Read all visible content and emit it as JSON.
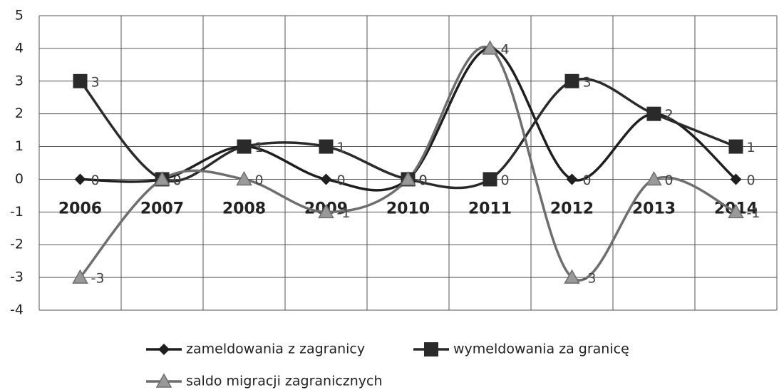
{
  "chart_data": {
    "type": "line",
    "categories": [
      "2006",
      "2007",
      "2008",
      "2009",
      "2010",
      "2011",
      "2012",
      "2013",
      "2014"
    ],
    "series": [
      {
        "name": "zameldowania z zagranicy",
        "color": "#1e1e1e",
        "marker": "diamond",
        "values": [
          0,
          0,
          1,
          0,
          0,
          4,
          0,
          2,
          0
        ]
      },
      {
        "name": "wymeldowania za granicę",
        "color": "#2a2a2a",
        "marker": "square",
        "values": [
          3,
          0,
          1,
          1,
          0,
          0,
          3,
          2,
          1
        ]
      },
      {
        "name": "saldo migracji zagranicznych",
        "color": "#6e6e6e",
        "marker": "triangle",
        "values": [
          -3,
          0,
          0,
          -1,
          0,
          4,
          -3,
          0,
          -1
        ]
      }
    ],
    "ylim": [
      -4,
      5
    ],
    "yticks": [
      -4,
      -3,
      -2,
      -1,
      0,
      1,
      2,
      3,
      4,
      5
    ],
    "grid": true,
    "smooth": true,
    "data_labels": true,
    "legend": "bottom"
  }
}
